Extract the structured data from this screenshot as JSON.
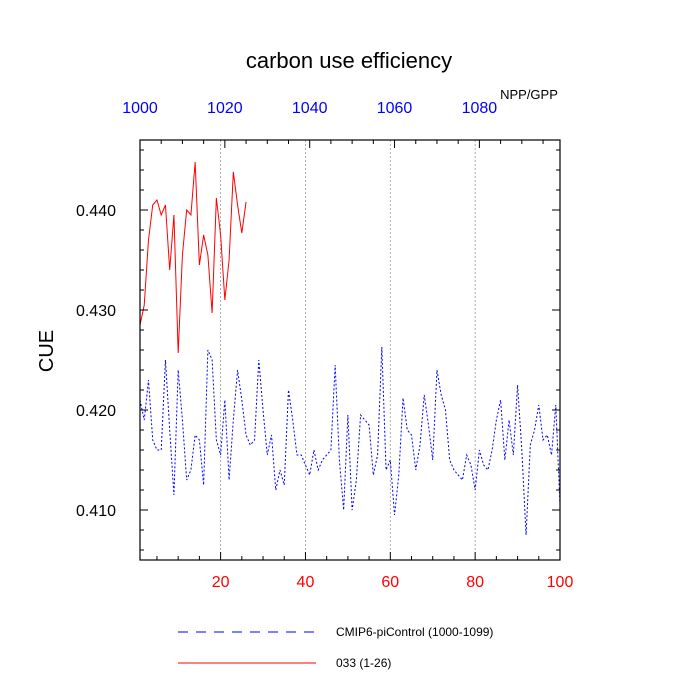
{
  "chart_data": {
    "type": "line",
    "title": "carbon use efficiency",
    "subtitle": "NPP/GPP",
    "ylabel": "CUE",
    "xlabel": "",
    "xlim": [
      1,
      100
    ],
    "ylim": [
      0.405,
      0.447
    ],
    "x_ticks": [
      20,
      40,
      60,
      80,
      100
    ],
    "x_tick_labels": [
      "20",
      "40",
      "60",
      "80",
      "100"
    ],
    "x_tick_color": "#ff0000",
    "x2_ticks": [
      1000,
      1020,
      1040,
      1060,
      1080
    ],
    "x2_tick_labels": [
      "1000",
      "1020",
      "1040",
      "1060",
      "1080"
    ],
    "x2_tick_color": "#0000ff",
    "y_ticks": [
      0.41,
      0.42,
      0.43,
      0.44
    ],
    "y_tick_labels": [
      "0.410",
      "0.420",
      "0.430",
      "0.440"
    ],
    "grid": "vertical-dotted",
    "legend_position": "bottom",
    "series": [
      {
        "name": "CMIP6-piControl (1000-1099)",
        "color": "#0000ff",
        "style": "dashed",
        "values": [
          0.421,
          0.419,
          0.423,
          0.417,
          0.416,
          0.416,
          0.425,
          0.418,
          0.4115,
          0.424,
          0.419,
          0.413,
          0.414,
          0.4175,
          0.417,
          0.4125,
          0.426,
          0.425,
          0.417,
          0.4155,
          0.421,
          0.413,
          0.419,
          0.424,
          0.421,
          0.4175,
          0.4165,
          0.417,
          0.425,
          0.42,
          0.4155,
          0.4175,
          0.412,
          0.414,
          0.4125,
          0.422,
          0.419,
          0.4155,
          0.4155,
          0.4145,
          0.4135,
          0.416,
          0.414,
          0.415,
          0.4155,
          0.416,
          0.4245,
          0.415,
          0.41,
          0.4195,
          0.41,
          0.413,
          0.4195,
          0.419,
          0.4185,
          0.4135,
          0.4155,
          0.4263,
          0.414,
          0.415,
          0.4095,
          0.4135,
          0.4212,
          0.418,
          0.4175,
          0.414,
          0.4165,
          0.4215,
          0.4185,
          0.415,
          0.424,
          0.4215,
          0.42,
          0.415,
          0.414,
          0.4135,
          0.413,
          0.4155,
          0.4145,
          0.412,
          0.416,
          0.4145,
          0.414,
          0.416,
          0.419,
          0.421,
          0.415,
          0.419,
          0.4155,
          0.4225,
          0.416,
          0.4075,
          0.4165,
          0.418,
          0.4205,
          0.417,
          0.4175,
          0.4155,
          0.4205,
          0.4105
        ]
      },
      {
        "name": "033 (1-26)",
        "color": "#ff0000",
        "style": "solid",
        "values": [
          0.4285,
          0.4305,
          0.437,
          0.4405,
          0.441,
          0.4395,
          0.4405,
          0.434,
          0.4395,
          0.4257,
          0.4355,
          0.44,
          0.4395,
          0.4448,
          0.4345,
          0.4375,
          0.4355,
          0.4297,
          0.4412,
          0.4375,
          0.431,
          0.435,
          0.4438,
          0.4405,
          0.4377,
          0.4408
        ]
      }
    ]
  }
}
